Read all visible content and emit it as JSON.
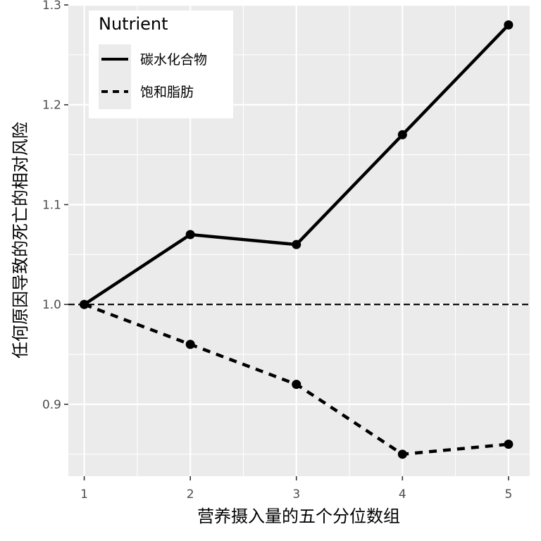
{
  "chart_data": {
    "type": "line",
    "xlabel": "营养摄入量的五个分位数组",
    "ylabel": "任何原因导致的死亡的相对风险",
    "x": [
      1,
      2,
      3,
      4,
      5
    ],
    "x_ticks": [
      "1",
      "2",
      "3",
      "4",
      "5"
    ],
    "y_ticks": [
      "0.9",
      "1.0",
      "1.1",
      "1.2",
      "1.3"
    ],
    "xlim": [
      0.85,
      5.2
    ],
    "ylim": [
      0.828,
      1.3
    ],
    "grid": true,
    "reference_line": {
      "y": 1.0,
      "style": "dashed"
    },
    "legend": {
      "title": "Nutrient",
      "position": "top-left"
    },
    "series": [
      {
        "name": "碳水化合物",
        "linetype": "solid",
        "values": [
          1.0,
          1.07,
          1.06,
          1.17,
          1.28
        ]
      },
      {
        "name": "饱和脂肪",
        "linetype": "dashed",
        "values": [
          1.0,
          0.96,
          0.92,
          0.85,
          0.86
        ]
      }
    ],
    "colors": {
      "panel_background": "#ebebeb",
      "grid_line": "#ffffff",
      "series_line": "#000000",
      "tick_text": "#4d4d4d"
    }
  }
}
